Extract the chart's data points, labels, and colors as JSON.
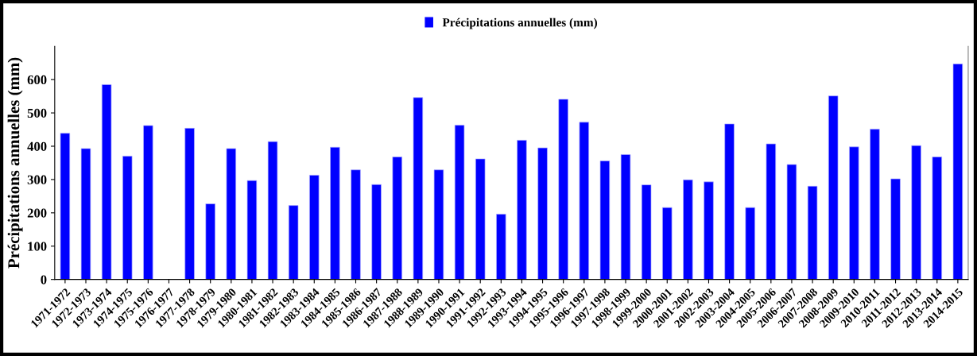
{
  "chart_data": {
    "type": "bar",
    "ylabel": "Précipitations annuelles (mm)",
    "categories": [
      "1971-1972",
      "1972-1973",
      "1973-1974",
      "1974-1975",
      "1975-1976",
      "1976-1977",
      "1977-1978",
      "1978-1979",
      "1979-1980",
      "1980-1981",
      "1981-1982",
      "1982-1983",
      "1983-1984",
      "1984-1985",
      "1985-1986",
      "1986-1987",
      "1987-1988",
      "1988-1989",
      "1989-1990",
      "1990-1991",
      "1991-1992",
      "1992-1993",
      "1993-1994",
      "1994-1995",
      "1995-1996",
      "1996-1997",
      "1997-1998",
      "1998-1999",
      "1999-2000",
      "2000-2001",
      "2001-2002",
      "2002-2003",
      "2003-2004",
      "2004-2005",
      "2005-2006",
      "2006-2007",
      "2007-2008",
      "2008-2009",
      "2009-2010",
      "2010-2011",
      "2011-2012",
      "2012-2013",
      "2013-2014",
      "2014-2015"
    ],
    "series": [
      {
        "name": "Précipitations annuelles (mm)",
        "color": "#0000ff",
        "values": [
          439,
          393,
          585,
          370,
          462,
          null,
          454,
          227,
          393,
          297,
          414,
          222,
          313,
          397,
          329,
          285,
          368,
          546,
          329,
          463,
          362,
          196,
          418,
          395,
          541,
          472,
          356,
          375,
          284,
          216,
          299,
          293,
          467,
          216,
          407,
          345,
          280,
          551,
          398,
          451,
          302,
          402,
          368,
          647
        ]
      }
    ],
    "ylim": [
      0,
      700
    ],
    "yticks": [
      0,
      100,
      200,
      300,
      400,
      500,
      600
    ],
    "grid": false,
    "legend": "top"
  }
}
